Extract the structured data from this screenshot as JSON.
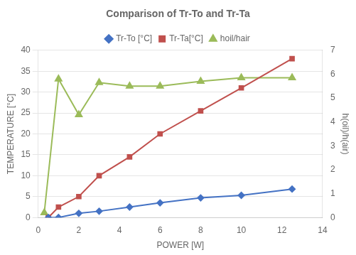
{
  "chart_data": {
    "type": "line",
    "title": "Comparison of Tr-To and Tr-Ta",
    "xlabel": "POWER [W]",
    "ylabel": "TEMPERATURE [°C]",
    "y2label": "h(oil)/h(air)",
    "series": [
      {
        "name": "Tr-To [°C]",
        "color": "#4472C4",
        "marker": "diamond",
        "x": [
          0.5,
          1.0,
          2.0,
          3.0,
          4.5,
          6.0,
          8.0,
          10.0,
          12.5
        ],
        "values": [
          0.0,
          0.0,
          1.0,
          1.5,
          2.5,
          3.5,
          4.7,
          5.3,
          6.8
        ]
      },
      {
        "name": "Tr-Ta[°C]",
        "color": "#C0504D",
        "marker": "square",
        "x": [
          0.5,
          1.0,
          2.0,
          3.0,
          4.5,
          6.0,
          8.0,
          10.0,
          12.5
        ],
        "values": [
          0.0,
          2.5,
          5.0,
          10.0,
          14.5,
          20.0,
          25.5,
          31.0,
          38.0
        ]
      },
      {
        "name": "hoil/hair",
        "color": "#9BBB59",
        "marker": "triangle",
        "axis": "y2",
        "x": [
          0.3,
          1.0,
          2.0,
          3.0,
          4.5,
          6.0,
          8.0,
          10.0,
          12.5
        ],
        "values": [
          0.2,
          5.8,
          4.3,
          5.65,
          5.5,
          5.5,
          5.7,
          5.85,
          5.85
        ]
      }
    ],
    "xlim": [
      0,
      14
    ],
    "xticks": [
      0,
      2,
      4,
      6,
      8,
      10,
      12,
      14
    ],
    "ylim": [
      0,
      40
    ],
    "yticks": [
      0,
      5,
      10,
      15,
      20,
      25,
      30,
      35,
      40
    ],
    "y2lim": [
      0,
      7
    ],
    "y2ticks": [
      0,
      1,
      2,
      3,
      4,
      5,
      6,
      7
    ],
    "grid": "y",
    "legend": "top"
  }
}
